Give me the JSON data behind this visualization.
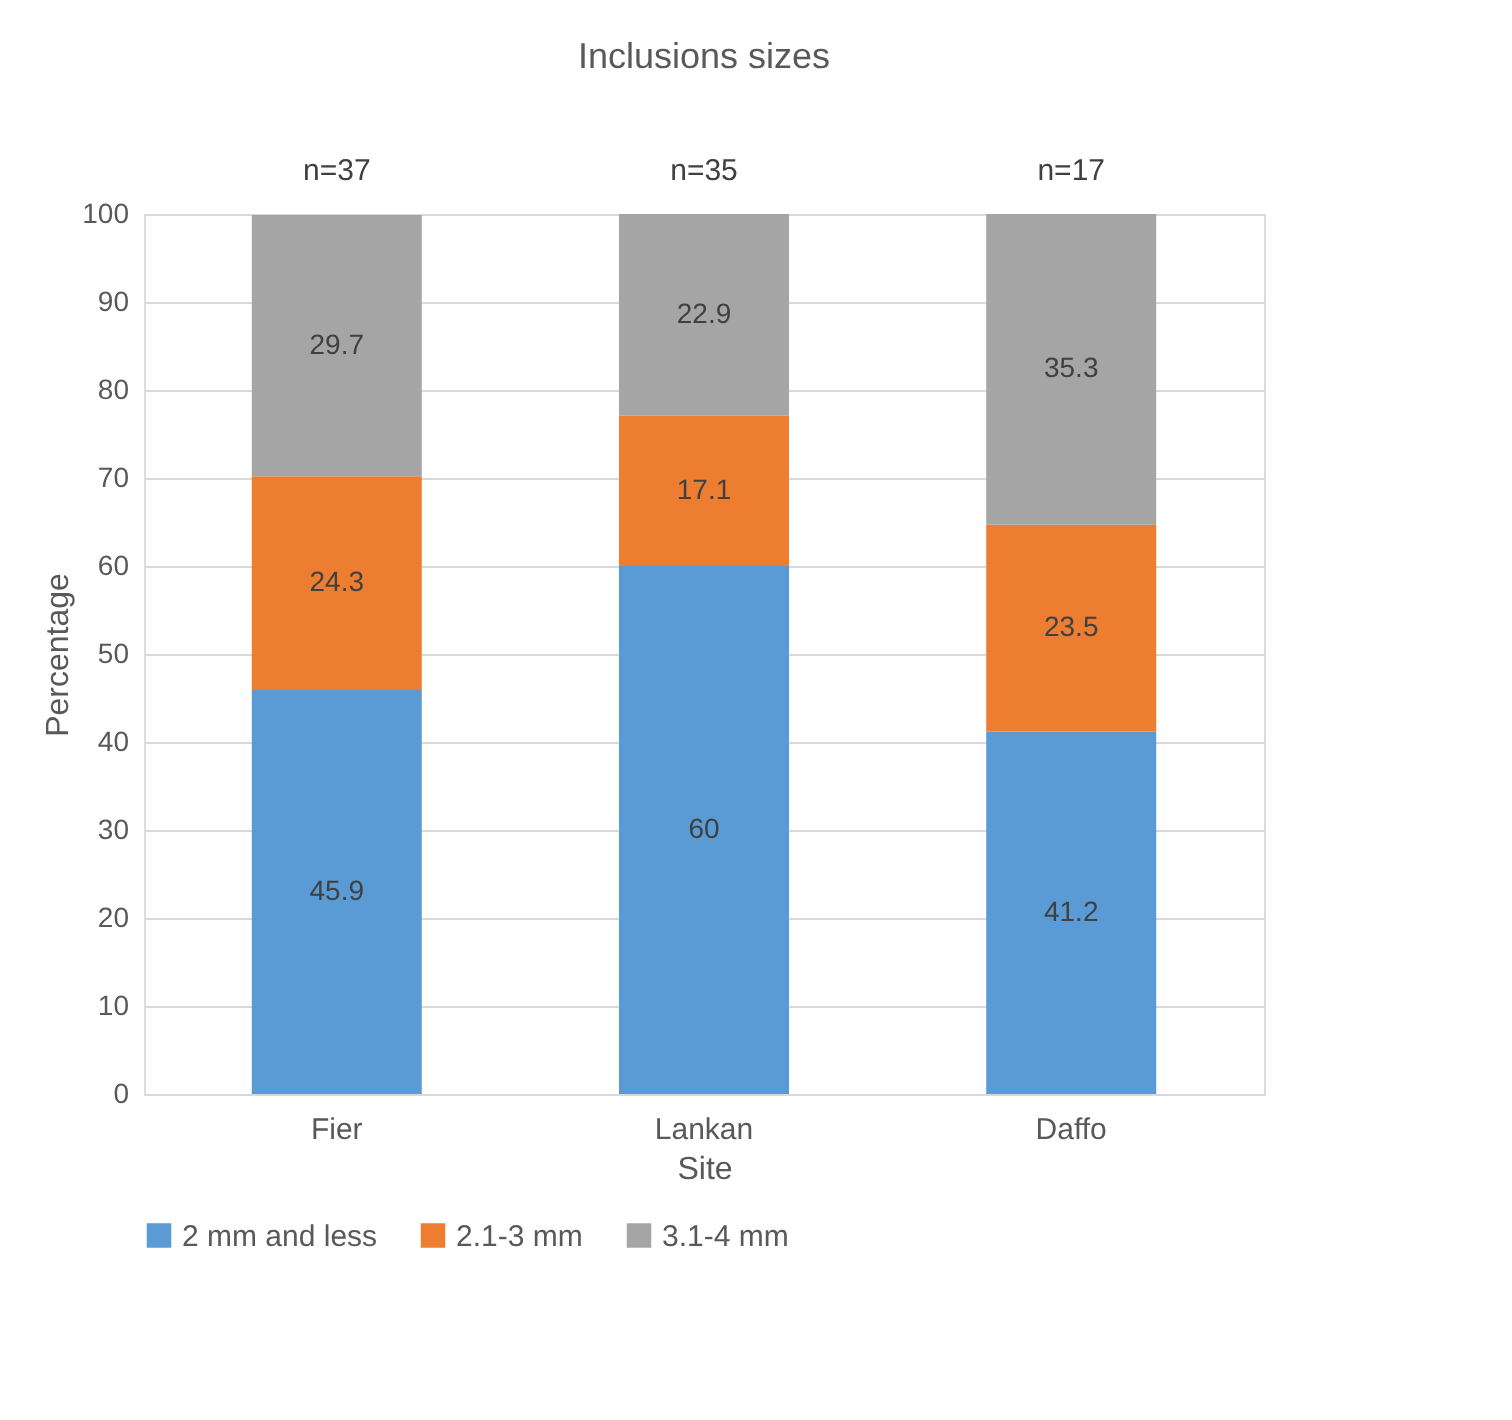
{
  "chart_data": {
    "type": "bar",
    "title": "Inclusions sizes",
    "xlabel": "Site",
    "ylabel": "Percentage",
    "categories": [
      "Fier",
      "Lankan",
      "Daffo"
    ],
    "series": [
      {
        "name": "2 mm and less",
        "color": "#5b9bd5",
        "values": [
          45.9,
          60,
          41.2
        ]
      },
      {
        "name": "2.1-3 mm",
        "color": "#ed7d31",
        "values": [
          24.3,
          17.1,
          23.5
        ]
      },
      {
        "name": "3.1-4 mm",
        "color": "#a5a5a5",
        "values": [
          29.7,
          22.9,
          35.3
        ]
      }
    ],
    "stacked": true,
    "data_labels": true,
    "ylim": [
      0,
      100
    ],
    "yticks": [
      0,
      10,
      20,
      30,
      40,
      50,
      60,
      70,
      80,
      90,
      100
    ],
    "grid": "y",
    "legend": "bottom",
    "annotations": [
      {
        "text": "n=37",
        "x": "Fier",
        "y": 100
      },
      {
        "text": "n=35",
        "x": "Lankan",
        "y": 100
      },
      {
        "text": "n=17",
        "x": "Daffo",
        "y": 100
      }
    ]
  }
}
